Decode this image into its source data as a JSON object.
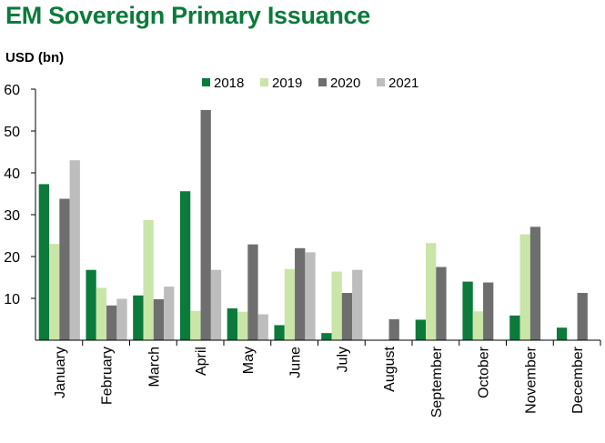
{
  "chart_data": {
    "type": "bar",
    "title": "EM Sovereign Primary Issuance",
    "ylabel": "USD (bn)",
    "xlabel": "",
    "ylim": [
      0,
      60
    ],
    "yticks": [
      10,
      20,
      30,
      40,
      50,
      60
    ],
    "legend_position": "top-center",
    "categories": [
      "January",
      "February",
      "March",
      "April",
      "May",
      "June",
      "July",
      "August",
      "September",
      "October",
      "November",
      "December"
    ],
    "series": [
      {
        "name": "2018",
        "color": "#0b7a3b",
        "values": [
          37.3,
          16.8,
          10.7,
          35.6,
          7.6,
          3.6,
          1.7,
          0,
          4.9,
          14.0,
          5.9,
          3.0
        ]
      },
      {
        "name": "2019",
        "color": "#c9e5a8",
        "values": [
          23.0,
          12.5,
          28.7,
          7.0,
          6.8,
          17.0,
          16.4,
          0,
          23.2,
          6.9,
          25.3,
          0
        ]
      },
      {
        "name": "2020",
        "color": "#6e6e6e",
        "values": [
          33.8,
          8.3,
          9.8,
          55.0,
          22.9,
          22.0,
          11.3,
          5.0,
          17.5,
          13.8,
          27.1,
          11.3
        ]
      },
      {
        "name": "2021",
        "color": "#bdbdbd",
        "values": [
          43.0,
          9.9,
          12.8,
          16.8,
          6.2,
          21.0,
          16.8,
          0,
          0,
          0,
          0,
          0
        ]
      }
    ]
  }
}
